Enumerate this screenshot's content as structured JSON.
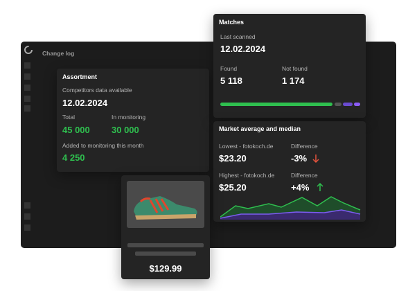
{
  "window": {
    "title": "Change log"
  },
  "assortment": {
    "title": "Assortment",
    "competitors_label": "Competitors data available",
    "competitors_date": "12.02.2024",
    "total_label": "Total",
    "total_value": "45 000",
    "monitoring_label": "In monitoring",
    "monitoring_value": "30 000",
    "added_label": "Added to monitoring this month",
    "added_value": "4 250"
  },
  "matches": {
    "title": "Matches",
    "last_scanned_label": "Last scanned",
    "last_scanned_date": "12.02.2024",
    "found_label": "Found",
    "found_value": "5 118",
    "not_found_label": "Not found",
    "not_found_value": "1 174"
  },
  "market": {
    "title": "Market average and median",
    "lowest_label": "Lowest - fotokoch.de",
    "lowest_price": "$23.20",
    "lowest_diff_label": "Difference",
    "lowest_diff": "-3%",
    "highest_label": "Highest - fotokoch.de",
    "highest_price": "$25.20",
    "highest_diff_label": "Difference",
    "highest_diff": "+4%"
  },
  "product": {
    "price": "$129.99"
  }
}
